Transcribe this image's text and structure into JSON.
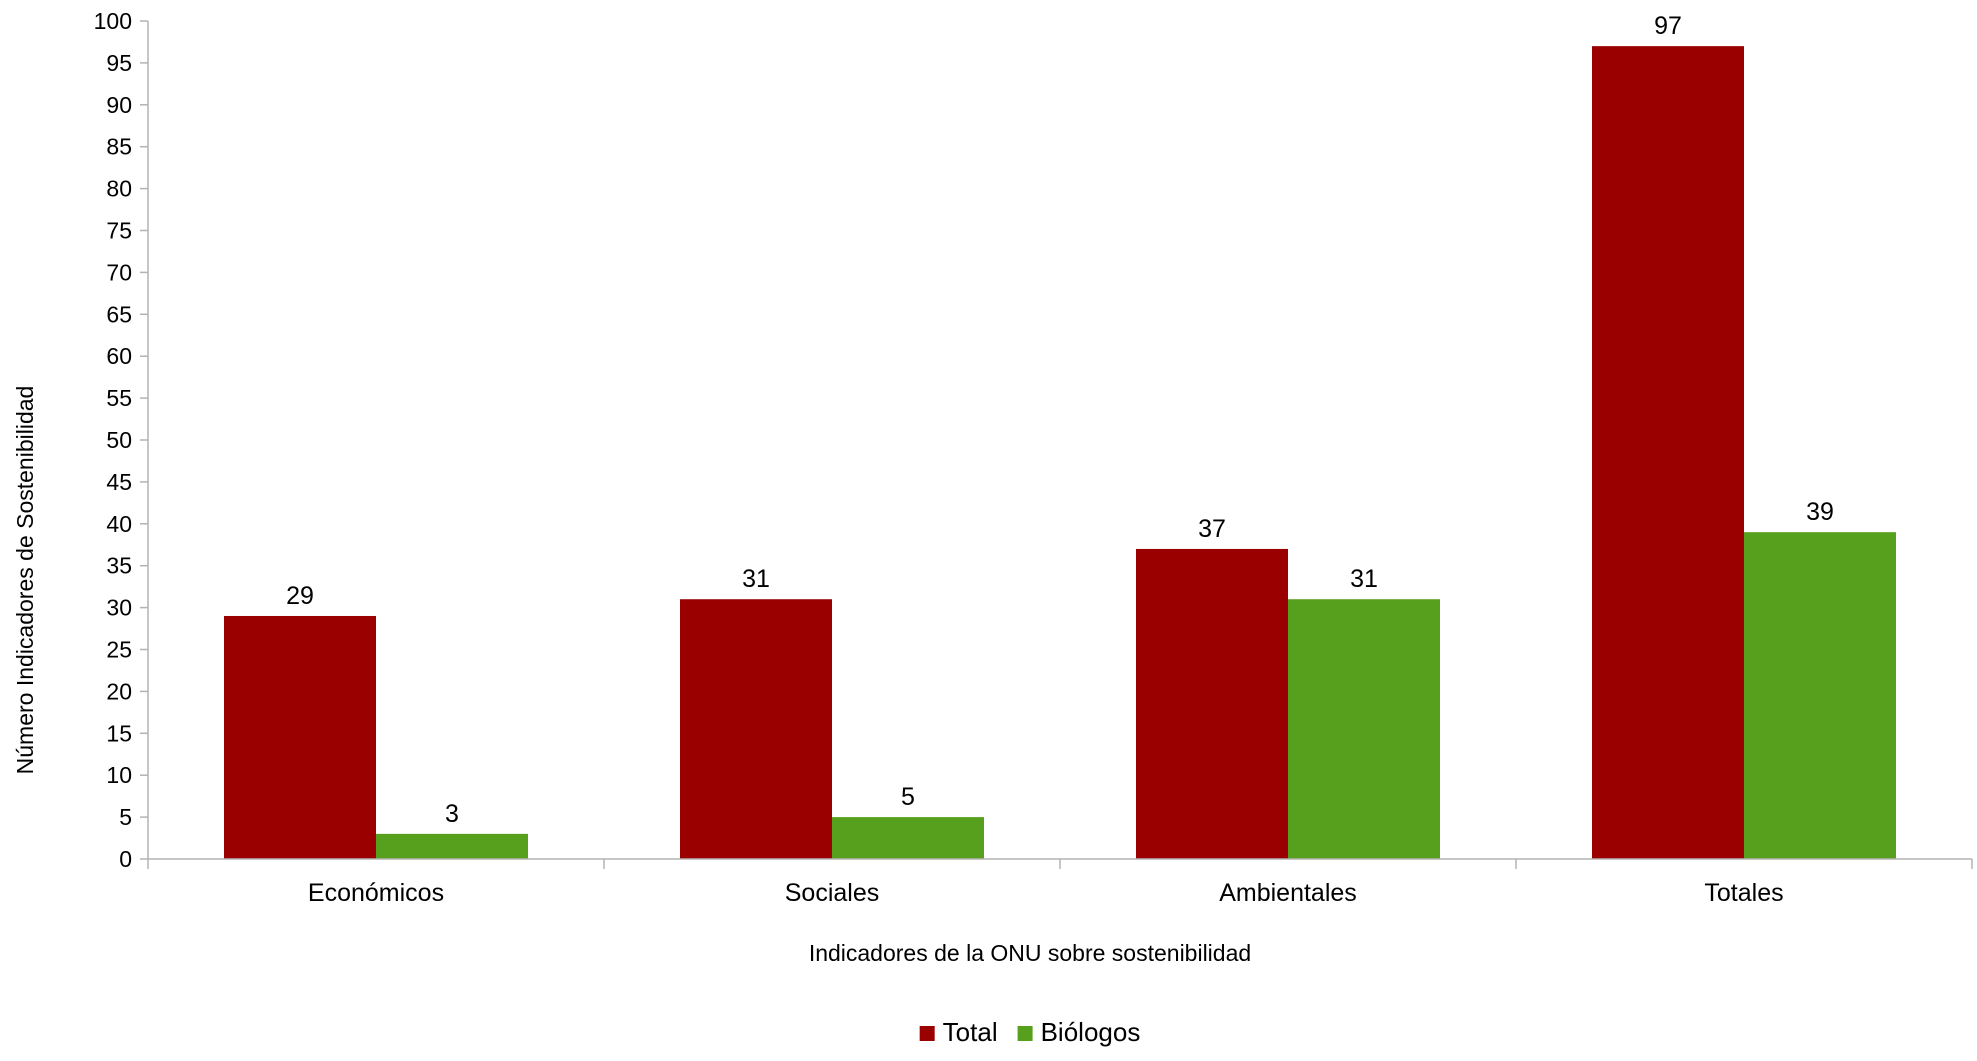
{
  "chart_data": {
    "type": "bar",
    "title": "",
    "xlabel": "Indicadores de la ONU sobre sostenibilidad",
    "ylabel": "Número Indicadores de Sostenibilidad",
    "categories": [
      "Económicos",
      "Sociales",
      "Ambientales",
      "Totales"
    ],
    "series": [
      {
        "name": "Total",
        "values": [
          29,
          31,
          37,
          97
        ],
        "color": "#9b0000"
      },
      {
        "name": "Biólogos",
        "values": [
          3,
          5,
          31,
          39
        ],
        "color": "#57a01d"
      }
    ],
    "ylim": [
      0,
      100
    ],
    "ytick_step": 5,
    "yticks": [
      "0",
      "5",
      "10",
      "15",
      "20",
      "25",
      "30",
      "35",
      "40",
      "45",
      "50",
      "55",
      "60",
      "65",
      "70",
      "75",
      "80",
      "85",
      "90",
      "95",
      "100"
    ],
    "grid": false,
    "data_labels": true,
    "legend_position": "bottom"
  }
}
